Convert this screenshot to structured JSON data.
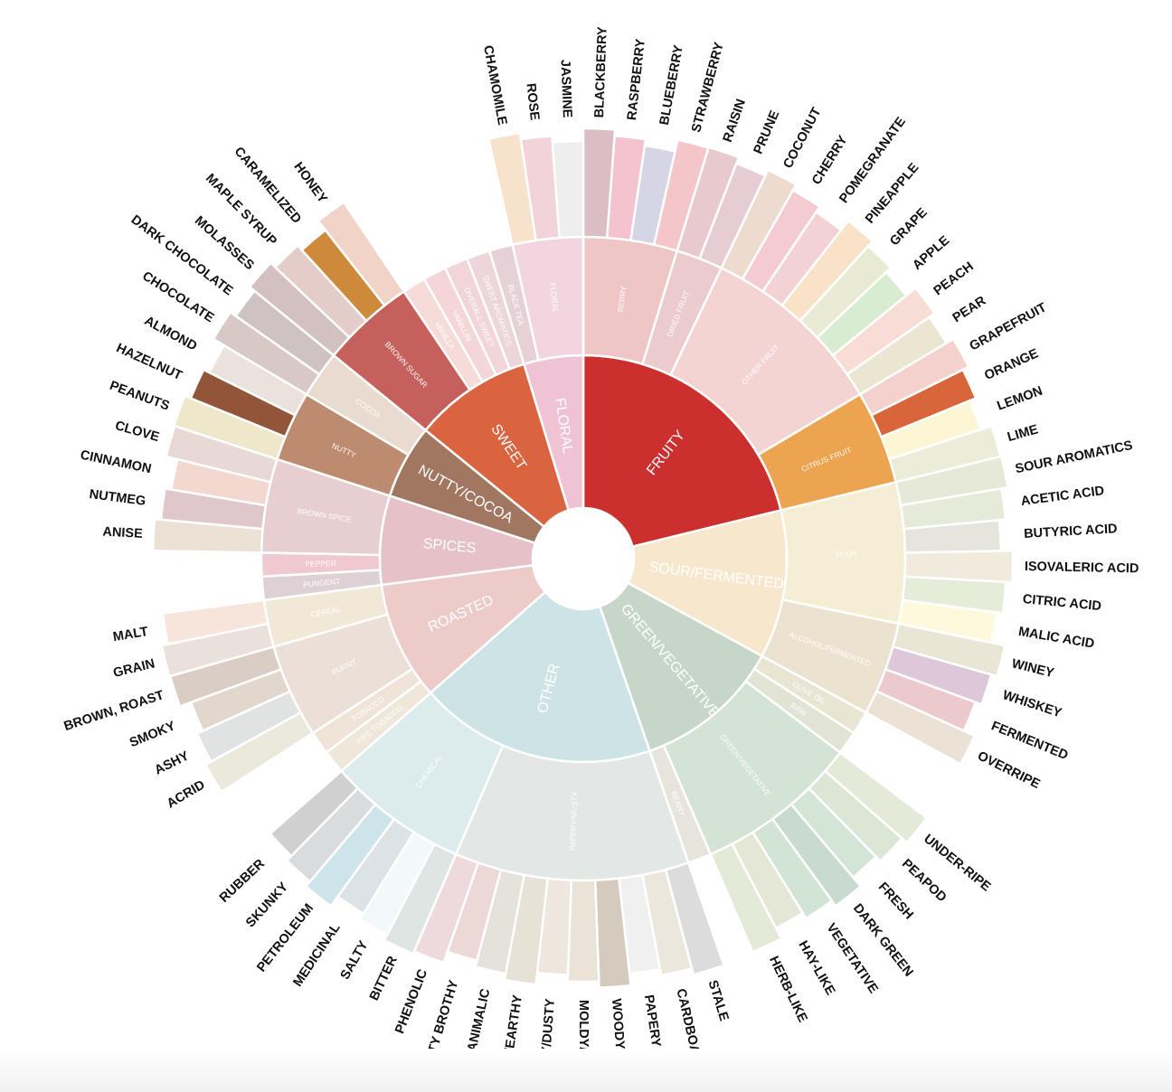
{
  "wheel": [
    {
      "name": "FRUITY",
      "color": "#cb302f",
      "children": [
        {
          "name": "BERRY",
          "color": "#efc6c6",
          "leaves": [
            [
              "BLACKBERRY",
              "#dbbec3"
            ],
            [
              "RASPBERRY",
              "#f4c3cf"
            ],
            [
              "BLUEBERRY",
              "#d5d5e5"
            ],
            [
              "STRAWBERRY",
              "#f5c6c9"
            ]
          ]
        },
        {
          "name": "DRIED FRUIT",
          "color": "#ebcbcb",
          "leaves": [
            [
              "RAISIN",
              "#e8c9cd"
            ],
            [
              "PRUNE",
              "#e6cdd4"
            ]
          ]
        },
        {
          "name": "OTHER FRUIT",
          "color": "#f4d4d3",
          "leaves": [
            [
              "COCONUT",
              "#eedbd0"
            ],
            [
              "CHERRY",
              "#f4cbd1"
            ],
            [
              "POMEGRANATE",
              "#f3d2d6"
            ],
            [
              "PINEAPPLE",
              "#f8e3c8"
            ],
            [
              "GRAPE",
              "#e8ead4"
            ],
            [
              "APPLE",
              "#d8ecd2"
            ],
            [
              "PEACH",
              "#f7ddd6"
            ],
            [
              "PEAR",
              "#ebe6d2"
            ]
          ]
        },
        {
          "name": "CITRUS FRUIT",
          "color": "#eda451",
          "leaves": [
            [
              "GRAPEFRUIT",
              "#f5d1cd"
            ],
            [
              "ORANGE",
              "#d9663a"
            ],
            [
              "LEMON",
              "#fdf6d4"
            ],
            [
              "LIME",
              "#ecedd8"
            ]
          ]
        }
      ]
    },
    {
      "name": "SOUR/FERMENTED",
      "color": "#f7e8cd",
      "children": [
        {
          "name": "SOUR",
          "color": "#f6edd5",
          "leaves": [
            [
              "SOUR AROMATICS",
              "#e6e9d7"
            ],
            [
              "ACETIC ACID",
              "#e6ead8"
            ],
            [
              "BUTYRIC ACID",
              "#e5e5dc"
            ],
            [
              "ISOVALERIC ACID",
              "#f1ebdd"
            ],
            [
              "CITRIC ACID",
              "#e5ecd8"
            ],
            [
              "MALIC ACID",
              "#fdf9dc"
            ]
          ]
        },
        {
          "name": "ALCOHOL/FERMENTED",
          "color": "#ece2d0",
          "leaves": [
            [
              "WINEY",
              "#e9e6d5"
            ],
            [
              "WHISKEY",
              "#ddc7d8"
            ],
            [
              "FERMENTED",
              "#ebc9cd"
            ],
            [
              "OVERRIPE",
              "#ebe1d4"
            ]
          ]
        }
      ]
    },
    {
      "name": "GREEN/VEGETATIVE",
      "color": "#c6d7ca",
      "children": [
        {
          "name": "OLIVE OIL",
          "color": "#e8e6d3",
          "leaves": []
        },
        {
          "name": "RAW",
          "color": "#e1e4d5",
          "leaves": []
        },
        {
          "name": "GREEN/VEGETATIVE",
          "color": "#d3e3d4",
          "leaves": [
            [
              "UNDER-RIPE",
              "#e5e9d8"
            ],
            [
              "PEAPOD",
              "#dce6d5"
            ],
            [
              "FRESH",
              "#d2e5d6"
            ],
            [
              "DARK GREEN",
              "#c9dbd0"
            ],
            [
              "VEGETATIVE",
              "#d2e4d3"
            ],
            [
              "HAY-LIKE",
              "#e4e6d6"
            ],
            [
              "HERB-LIKE",
              "#e3ebd8"
            ]
          ]
        },
        {
          "name": "BEANY",
          "color": "#e7e5db",
          "leaves": []
        }
      ]
    },
    {
      "name": "OTHER",
      "color": "#cde3e6",
      "children": [
        {
          "name": "PAPERY/MUSTY",
          "color": "#e3e7e6",
          "leaves": [
            [
              "STALE",
              "#dcdcdc"
            ],
            [
              "CARDBOARD",
              "#ece7dd"
            ],
            [
              "PAPERY",
              "#f0f0f0"
            ],
            [
              "WOODY",
              "#d4cabe"
            ],
            [
              "MOLDY/DAMP",
              "#e9e3d8"
            ],
            [
              "MUSTY/DUSTY",
              "#ede7de"
            ],
            [
              "MUSTY/EARTHY",
              "#e6e2d6"
            ],
            [
              "ANIMALIC",
              "#e5e2dc"
            ],
            [
              "MEATY BROTHY",
              "#edd8d8"
            ],
            [
              "PHENOLIC",
              "#eed9dc"
            ]
          ]
        },
        {
          "name": "CHEMICAL",
          "color": "#dcebec",
          "leaves": [
            [
              "BITTER",
              "#dfe5e3"
            ],
            [
              "SALTY",
              "#f3f8fa"
            ],
            [
              "MEDICINAL",
              "#dce3e6"
            ],
            [
              "PETROLEUM",
              "#cde4eb"
            ],
            [
              "SKUNKY",
              "#d8dcdc"
            ],
            [
              "RUBBER",
              "#d0d0d0"
            ]
          ]
        }
      ]
    },
    {
      "name": "ROASTED",
      "color": "#eccbc9",
      "children": [
        {
          "name": "PIPE TOBACCO",
          "color": "#efe8da",
          "leaves": []
        },
        {
          "name": "TOBACCO",
          "color": "#efe4d7",
          "leaves": []
        },
        {
          "name": "BURNT",
          "color": "#ecdfd8",
          "leaves": [
            [
              "ACRID",
              "#ebe9db"
            ],
            [
              "ASHY",
              "#e1e2e2"
            ],
            [
              "SMOKY",
              "#e2d7cd"
            ],
            [
              "BROWN, ROAST",
              "#dacdc5"
            ]
          ]
        },
        {
          "name": "CEREAL",
          "color": "#f2e8d8",
          "leaves": [
            [
              "GRAIN",
              "#ebe1dc"
            ],
            [
              "MALT",
              "#f7e5db"
            ]
          ]
        }
      ]
    },
    {
      "name": "SPICES",
      "color": "#e6c2c8",
      "children": [
        {
          "name": "PUNGENT",
          "color": "#ded1d6",
          "leaves": []
        },
        {
          "name": "PEPPER",
          "color": "#efc9cf",
          "leaves": []
        },
        {
          "name": "BROWN SPICE",
          "color": "#e7cfd1",
          "leaves": [
            [
              "ANISE",
              "#ece1d5"
            ],
            [
              "NUTMEG",
              "#dfc7cc"
            ],
            [
              "CINNAMON",
              "#f3d8cf"
            ],
            [
              "CLOVE",
              "#e8d8d6"
            ]
          ]
        }
      ]
    },
    {
      "name": "NUTTY/COCOA",
      "color": "#a27762",
      "children": [
        {
          "name": "NUTTY",
          "color": "#bd8b6f",
          "leaves": [
            [
              "PEANUTS",
              "#efe7c9"
            ],
            [
              "HAZELNUT",
              "#93553a"
            ],
            [
              "ALMOND",
              "#ebe2dc"
            ]
          ]
        },
        {
          "name": "COCOA",
          "color": "#e9dbd0",
          "leaves": [
            [
              "CHOCOLATE",
              "#d8c9c7"
            ],
            [
              "DARK CHOCOLATE",
              "#cfc2c3"
            ]
          ]
        }
      ]
    },
    {
      "name": "SWEET",
      "color": "#d9643f",
      "children": [
        {
          "name": "BROWN SUGAR",
          "color": "#c5605c",
          "leaves": [
            [
              "MOLASSES",
              "#d3c1c1"
            ],
            [
              "MAPLE SYRUP",
              "#e4cdc8"
            ],
            [
              "CARAMELIZED",
              "#cd8a3a"
            ],
            [
              "HONEY",
              "#f2d3c8"
            ]
          ]
        },
        {
          "name": "VANILLA",
          "color": "#f5dcd9",
          "leaves": []
        },
        {
          "name": "VANILLIN",
          "color": "#f4d6d9",
          "leaves": []
        },
        {
          "name": "OVERALL SWEET",
          "color": "#f1d5d9",
          "leaves": []
        },
        {
          "name": "SWEET AROMATICS",
          "color": "#ecd6d9",
          "leaves": []
        }
      ]
    },
    {
      "name": "FLORAL",
      "color": "#efc3d3",
      "children": [
        {
          "name": "BLACK TEA",
          "color": "#e6d2d6",
          "leaves": []
        },
        {
          "name": "FLORAL",
          "color": "#f3d5df",
          "leaves": [
            [
              "CHAMOMILE",
              "#f7e3cb"
            ],
            [
              "ROSE",
              "#f2d3d9"
            ],
            [
              "JASMINE",
              "#eeeeee"
            ]
          ]
        }
      ]
    }
  ]
}
